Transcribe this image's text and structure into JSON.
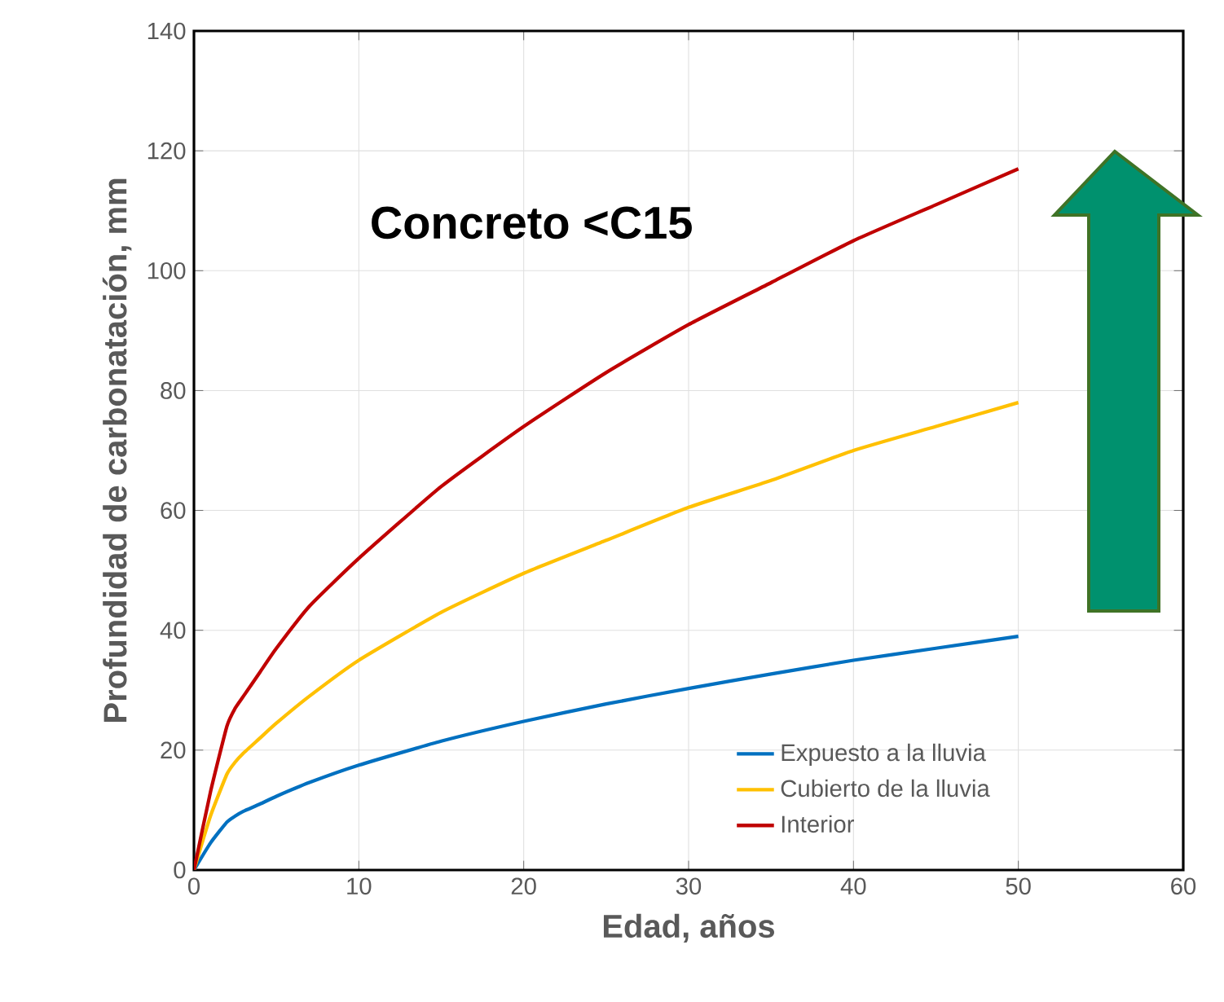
{
  "chart_data": {
    "type": "line",
    "xlabel": "Edad, años",
    "ylabel": "Profundidad de carbonatación, mm",
    "annotations": [
      "Concreto <C15"
    ],
    "xlim": [
      0,
      60
    ],
    "ylim": [
      0,
      140
    ],
    "xticks": [
      0,
      10,
      20,
      30,
      40,
      50,
      60
    ],
    "yticks": [
      0,
      20,
      40,
      60,
      80,
      100,
      120,
      140
    ],
    "grid": true,
    "legend": "bottom right",
    "marker": "none",
    "line_style": "solid",
    "x": [
      0,
      1,
      2,
      2.5,
      3,
      4,
      5,
      7,
      10,
      15,
      20,
      25,
      30,
      35,
      40,
      45,
      50
    ],
    "series": [
      {
        "name": "Expuesto a la lluvia",
        "color": "#0070c0",
        "values": [
          0,
          4.5,
          8,
          9,
          9.8,
          11,
          12.3,
          14.6,
          17.5,
          21.5,
          24.8,
          27.7,
          30.3,
          32.7,
          35,
          37,
          39
        ]
      },
      {
        "name": "Cubierto de la lluvia",
        "color": "#ffc000",
        "values": [
          0,
          9,
          16,
          18,
          19.5,
          22,
          24.5,
          29,
          35,
          43,
          49.5,
          55,
          60.5,
          65,
          70,
          74,
          78
        ]
      },
      {
        "name": "Interior",
        "color": "#c00000",
        "values": [
          0,
          13,
          24,
          27,
          29,
          33,
          37,
          44,
          52,
          64,
          74,
          83,
          91,
          98,
          105,
          111,
          117
        ]
      }
    ]
  }
}
